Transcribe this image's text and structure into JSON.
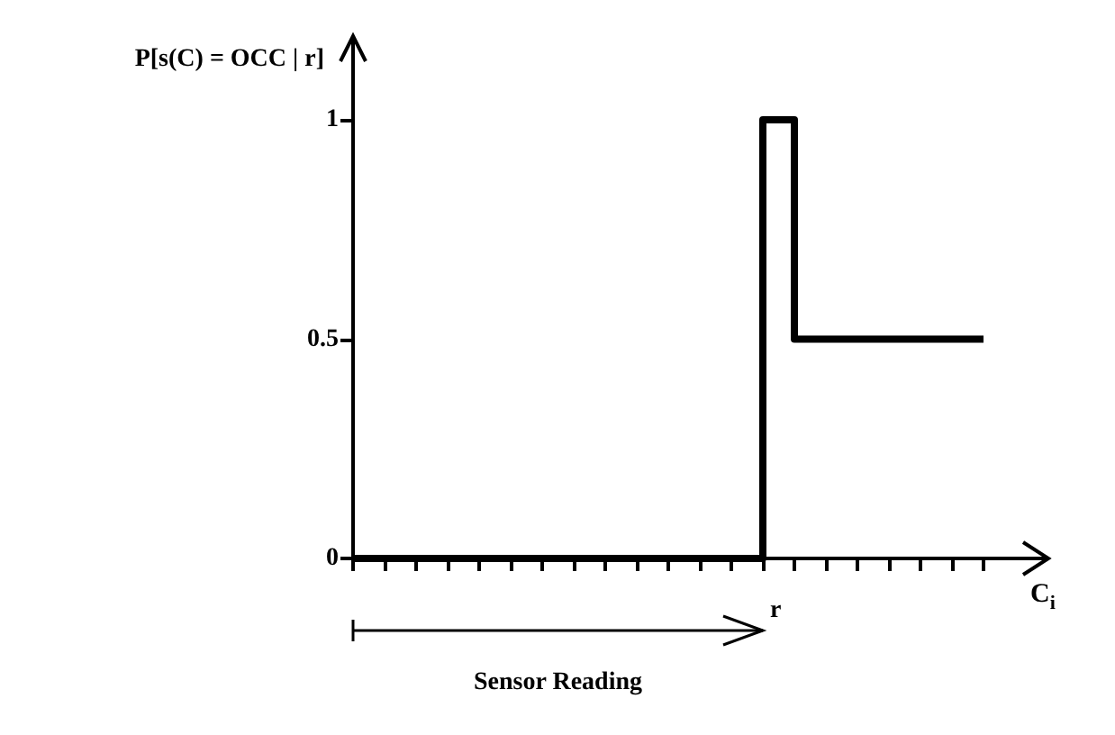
{
  "chart_data": {
    "type": "step",
    "ylabel": "P[s(C) = OCC | r]",
    "xlabel": "C$_{i}$",
    "categories": [
      null,
      null,
      null,
      null,
      null,
      null,
      null,
      null,
      null,
      null,
      null,
      null,
      null,
      null,
      null,
      null,
      null,
      null,
      null,
      null,
      null
    ],
    "series": [
      {
        "color": "#000000",
        "values": [
          0,
          0,
          0,
          0,
          0,
          0,
          0,
          0,
          0,
          0,
          0,
          0,
          0,
          1,
          0.5,
          0.5,
          0.5,
          0.5,
          0.5,
          0.5,
          0.5
        ]
      }
    ],
    "ylim": [
      0,
      1.15
    ],
    "yticks": [
      0,
      0.5,
      1
    ],
    "tick_labels": "y",
    "grid": false,
    "marker": "none",
    "line_style": "solid",
    "annotations": [
      "r",
      "Sensor Reading"
    ]
  }
}
